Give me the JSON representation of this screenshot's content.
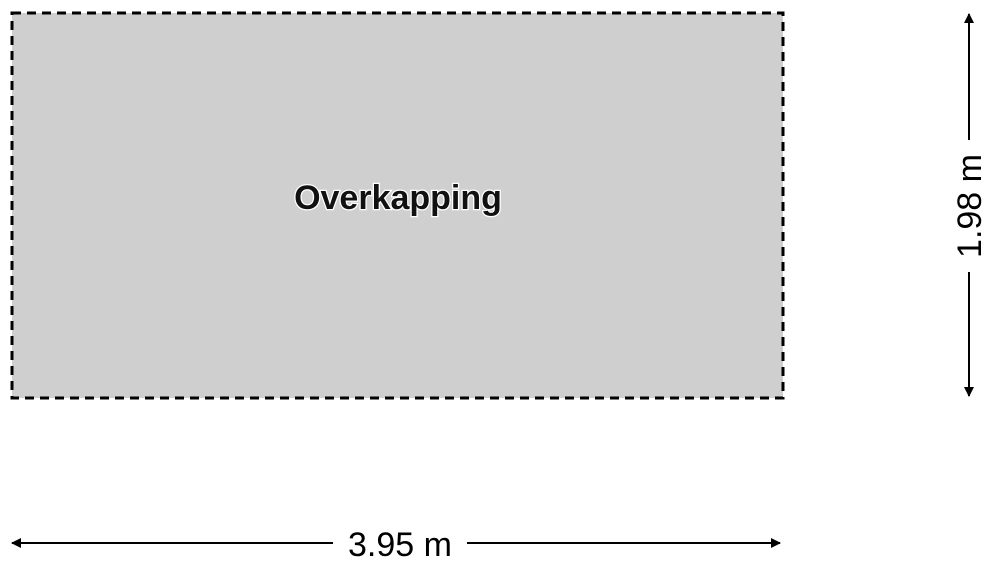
{
  "room": {
    "name": "Overkapping",
    "fill_color": "#cfcfcf",
    "border_style": "dashed",
    "border_color": "#000000"
  },
  "dimensions": {
    "width_label": "3.95 m",
    "height_label": "1.98 m"
  }
}
